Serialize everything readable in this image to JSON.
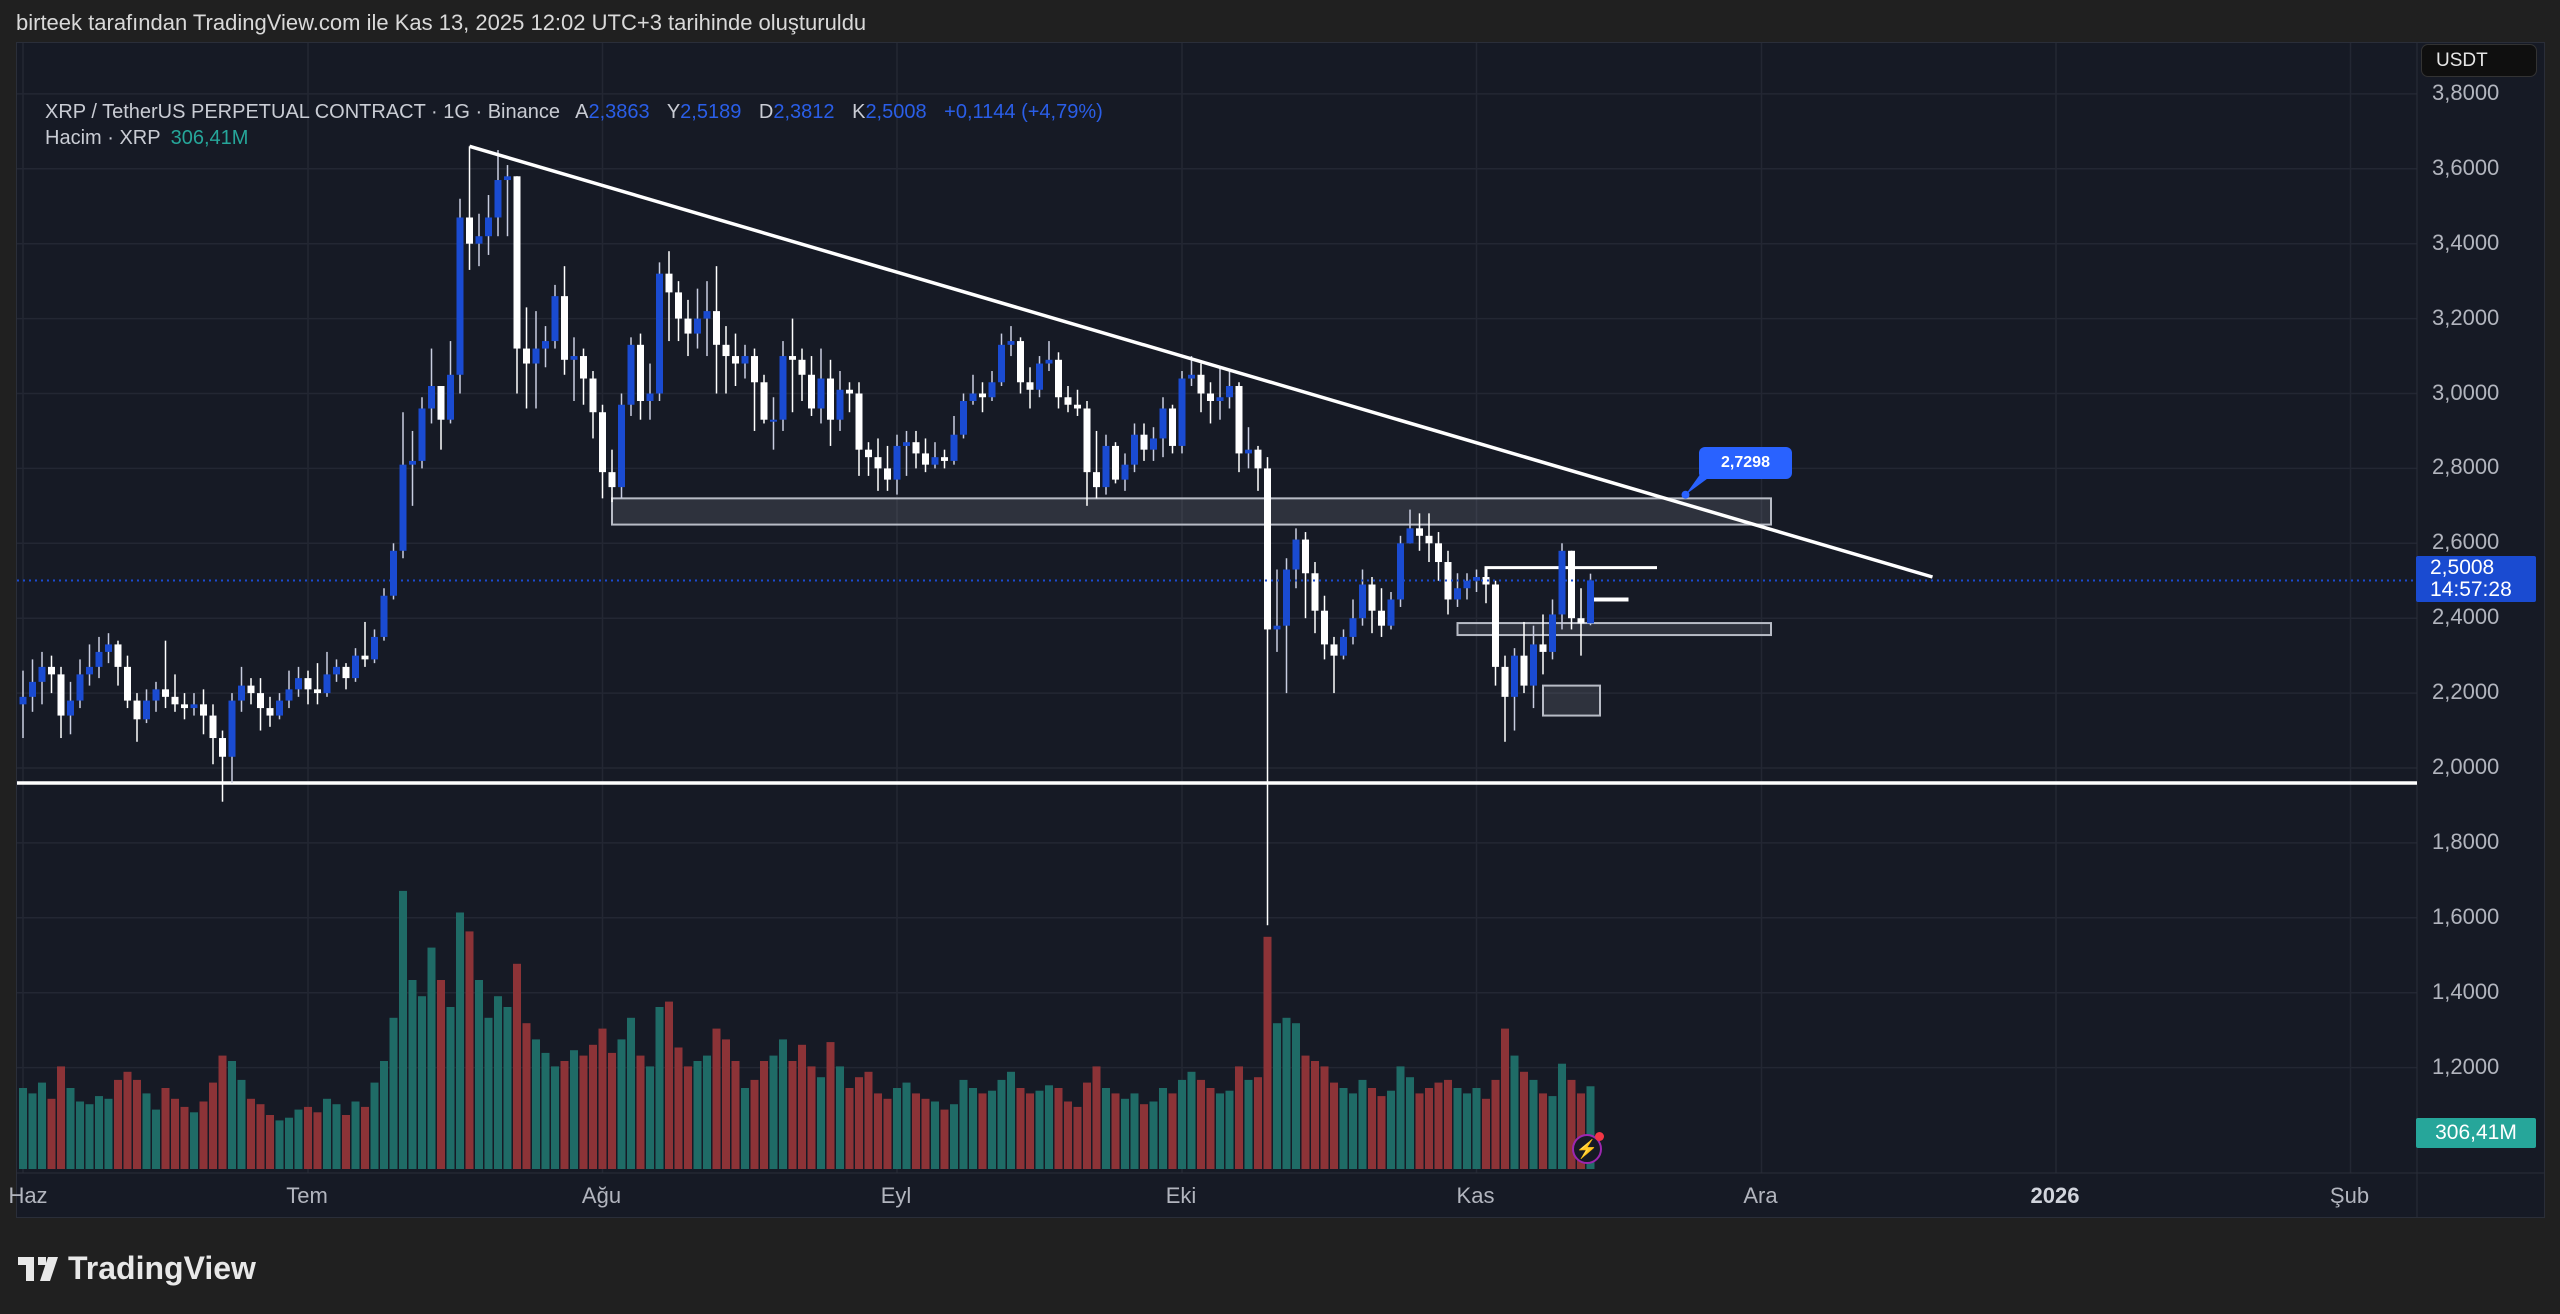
{
  "caption": "birteek tarafından TradingView.com ile Kas 13, 2025 12:02 UTC+3 tarihinde oluşturuldu",
  "legend": {
    "symbol": "XRP / TetherUS PERPETUAL CONTRACT · 1G · Binance",
    "open_label": "A",
    "open": "2,3863",
    "high_label": "Y",
    "high": "2,5189",
    "low_label": "D",
    "low": "2,3812",
    "close_label": "K",
    "close": "2,5008",
    "change": "+0,1144 (+4,79%)",
    "volume_label": "Hacim · XRP",
    "volume": "306,41M"
  },
  "currency_button": "USDT",
  "last_price": {
    "price": "2,5008",
    "countdown": "14:57:28"
  },
  "last_volume": "306,41M",
  "callout": "2,7298",
  "brand": "TradingView",
  "colors": {
    "background": "#161a25",
    "up_candle": "#1a4bd1",
    "down_candle": "#ffffff",
    "volume_up": "#1f6b66",
    "volume_down": "#8c3337",
    "drawing": "#ffffff",
    "callout": "#2962ff",
    "volume_tag": "#26a69a"
  },
  "icons": {
    "alert": "lightning-icon",
    "logo": "tradingview-logo-icon"
  },
  "chart_data": {
    "type": "candlestick",
    "start_date": "2025-06-01",
    "interval": "1D",
    "y_ticks": [
      "3,8000",
      "3,6000",
      "3,4000",
      "3,2000",
      "3,0000",
      "2,8000",
      "2,6000",
      "2,4000",
      "2,2000",
      "2,0000",
      "1,8000",
      "1,6000",
      "1,4000",
      "1,2000"
    ],
    "y_tick_values": [
      3.8,
      3.6,
      3.4,
      3.2,
      3.0,
      2.8,
      2.6,
      2.4,
      2.2,
      2.0,
      1.8,
      1.6,
      1.4,
      1.2
    ],
    "x_ticks": [
      {
        "label": "Haz",
        "date": "2025-06-01"
      },
      {
        "label": "Tem",
        "date": "2025-07-01"
      },
      {
        "label": "Ağu",
        "date": "2025-08-01"
      },
      {
        "label": "Eyl",
        "date": "2025-09-01"
      },
      {
        "label": "Eki",
        "date": "2025-10-01"
      },
      {
        "label": "Kas",
        "date": "2025-11-01"
      },
      {
        "label": "Ara",
        "date": "2025-12-01"
      },
      {
        "label": "2026",
        "date": "2026-01-01",
        "bold": true
      },
      {
        "label": "Şub",
        "date": "2026-02-01"
      }
    ],
    "first_open": 2.17,
    "close": [
      2.19,
      2.23,
      2.27,
      2.25,
      2.14,
      2.18,
      2.25,
      2.27,
      2.31,
      2.33,
      2.27,
      2.18,
      2.13,
      2.18,
      2.21,
      2.19,
      2.17,
      2.16,
      2.17,
      2.14,
      2.08,
      2.03,
      2.18,
      2.22,
      2.2,
      2.16,
      2.14,
      2.18,
      2.21,
      2.24,
      2.21,
      2.2,
      2.25,
      2.27,
      2.24,
      2.3,
      2.29,
      2.35,
      2.46,
      2.58,
      2.81,
      2.82,
      2.96,
      3.02,
      2.93,
      3.05,
      3.47,
      3.4,
      3.42,
      3.47,
      3.57,
      3.58,
      3.12,
      3.08,
      3.12,
      3.14,
      3.26,
      3.09,
      3.1,
      3.04,
      2.95,
      2.79,
      2.75,
      2.97,
      3.13,
      2.98,
      3.0,
      3.32,
      3.27,
      3.2,
      3.16,
      3.2,
      3.22,
      3.13,
      3.1,
      3.08,
      3.1,
      3.03,
      2.93,
      2.93,
      3.1,
      3.09,
      3.05,
      2.96,
      3.04,
      2.93,
      3.01,
      3.0,
      2.85,
      2.83,
      2.8,
      2.77,
      2.86,
      2.87,
      2.84,
      2.81,
      2.83,
      2.82,
      2.89,
      2.98,
      3.0,
      2.99,
      3.03,
      3.13,
      3.14,
      3.03,
      3.01,
      3.08,
      3.09,
      2.99,
      2.97,
      2.96,
      2.79,
      2.75,
      2.86,
      2.77,
      2.81,
      2.89,
      2.85,
      2.88,
      2.96,
      2.86,
      3.04,
      3.05,
      3.0,
      2.98,
      2.99,
      3.02,
      2.84,
      2.85,
      2.8,
      2.37,
      2.38,
      2.53,
      2.61,
      2.52,
      2.42,
      2.33,
      2.3,
      2.35,
      2.4,
      2.49,
      2.42,
      2.38,
      2.45,
      2.6,
      2.64,
      2.62,
      2.6,
      2.55,
      2.45,
      2.48,
      2.5,
      2.51,
      2.49,
      2.27,
      2.19,
      2.3,
      2.22,
      2.33,
      2.31,
      2.41,
      2.58,
      2.4,
      2.3863,
      2.5008
    ],
    "high": [
      2.26,
      2.29,
      2.31,
      2.3,
      2.27,
      2.23,
      2.29,
      2.33,
      2.35,
      2.36,
      2.34,
      2.3,
      2.2,
      2.21,
      2.23,
      2.34,
      2.25,
      2.2,
      2.2,
      2.21,
      2.17,
      2.1,
      2.2,
      2.27,
      2.24,
      2.24,
      2.19,
      2.2,
      2.26,
      2.27,
      2.26,
      2.28,
      2.31,
      2.29,
      2.28,
      2.32,
      2.39,
      2.37,
      2.48,
      2.6,
      2.95,
      2.9,
      2.99,
      3.12,
      3.02,
      3.14,
      3.52,
      3.66,
      3.48,
      3.53,
      3.65,
      3.61,
      3.58,
      3.23,
      3.22,
      3.18,
      3.29,
      3.34,
      3.15,
      3.12,
      3.06,
      2.97,
      2.85,
      3.0,
      3.15,
      3.16,
      3.08,
      3.35,
      3.38,
      3.3,
      3.25,
      3.28,
      3.3,
      3.34,
      3.18,
      3.16,
      3.13,
      3.12,
      3.05,
      2.99,
      3.14,
      3.2,
      3.12,
      3.1,
      3.12,
      3.09,
      3.06,
      3.03,
      3.03,
      2.87,
      2.88,
      2.86,
      2.89,
      2.9,
      2.9,
      2.88,
      2.87,
      2.85,
      2.94,
      3.0,
      3.05,
      3.03,
      3.06,
      3.16,
      3.18,
      3.15,
      3.07,
      3.1,
      3.14,
      3.11,
      3.02,
      3.01,
      2.98,
      2.9,
      2.89,
      2.87,
      2.84,
      2.92,
      2.92,
      2.91,
      2.99,
      2.97,
      3.06,
      3.1,
      3.08,
      3.03,
      3.07,
      3.06,
      3.03,
      2.91,
      2.86,
      2.83,
      2.53,
      2.56,
      2.64,
      2.63,
      2.55,
      2.46,
      2.35,
      2.37,
      2.45,
      2.53,
      2.51,
      2.48,
      2.47,
      2.62,
      2.69,
      2.68,
      2.68,
      2.63,
      2.58,
      2.52,
      2.52,
      2.53,
      2.52,
      2.5,
      2.3,
      2.32,
      2.39,
      2.38,
      2.41,
      2.45,
      2.6,
      2.58,
      2.48,
      2.5189
    ],
    "low": [
      2.08,
      2.15,
      2.17,
      2.2,
      2.08,
      2.09,
      2.16,
      2.22,
      2.24,
      2.28,
      2.22,
      2.16,
      2.07,
      2.12,
      2.15,
      2.16,
      2.15,
      2.13,
      2.14,
      2.09,
      2.01,
      1.91,
      1.96,
      2.15,
      2.17,
      2.1,
      2.11,
      2.13,
      2.16,
      2.19,
      2.17,
      2.17,
      2.19,
      2.23,
      2.21,
      2.23,
      2.27,
      2.28,
      2.34,
      2.45,
      2.56,
      2.7,
      2.8,
      2.92,
      2.85,
      2.92,
      3.0,
      3.33,
      3.34,
      3.37,
      3.42,
      3.42,
      3.0,
      2.96,
      2.96,
      3.07,
      3.12,
      3.05,
      2.98,
      2.97,
      2.88,
      2.72,
      2.71,
      2.72,
      2.94,
      2.93,
      2.93,
      2.98,
      3.14,
      3.14,
      3.1,
      3.12,
      3.1,
      3.0,
      3.0,
      3.02,
      3.04,
      2.9,
      2.92,
      2.85,
      2.9,
      2.95,
      2.98,
      2.94,
      2.92,
      2.86,
      2.9,
      2.95,
      2.78,
      2.78,
      2.74,
      2.74,
      2.73,
      2.78,
      2.8,
      2.79,
      2.8,
      2.8,
      2.81,
      2.88,
      2.97,
      2.95,
      2.98,
      3.02,
      3.1,
      3.0,
      2.96,
      2.99,
      3.06,
      2.96,
      2.95,
      2.94,
      2.7,
      2.72,
      2.73,
      2.76,
      2.74,
      2.79,
      2.82,
      2.82,
      2.83,
      2.84,
      2.84,
      3.02,
      2.95,
      2.92,
      2.93,
      2.96,
      2.79,
      2.8,
      2.74,
      1.58,
      2.31,
      2.2,
      2.48,
      2.4,
      2.36,
      2.29,
      2.2,
      2.29,
      2.33,
      2.38,
      2.36,
      2.35,
      2.37,
      2.43,
      2.6,
      2.58,
      2.55,
      2.5,
      2.41,
      2.43,
      2.45,
      2.47,
      2.44,
      2.22,
      2.07,
      2.1,
      2.2,
      2.16,
      2.25,
      2.29,
      2.37,
      2.37,
      2.3,
      2.3812
    ],
    "volume_millions": [
      300,
      280,
      320,
      260,
      380,
      300,
      250,
      240,
      270,
      260,
      330,
      360,
      330,
      280,
      220,
      300,
      260,
      230,
      210,
      250,
      320,
      420,
      400,
      330,
      260,
      240,
      200,
      180,
      190,
      220,
      230,
      210,
      260,
      240,
      200,
      250,
      230,
      320,
      400,
      560,
      1030,
      700,
      640,
      820,
      700,
      600,
      950,
      880,
      700,
      560,
      640,
      600,
      760,
      540,
      480,
      430,
      380,
      400,
      440,
      420,
      460,
      520,
      430,
      480,
      560,
      420,
      380,
      600,
      620,
      450,
      380,
      400,
      420,
      520,
      480,
      400,
      300,
      330,
      400,
      420,
      480,
      400,
      460,
      380,
      340,
      470,
      380,
      300,
      340,
      360,
      280,
      260,
      300,
      320,
      280,
      260,
      250,
      220,
      240,
      330,
      300,
      280,
      290,
      330,
      360,
      300,
      280,
      290,
      310,
      300,
      250,
      230,
      320,
      380,
      300,
      280,
      260,
      280,
      240,
      250,
      300,
      280,
      330,
      360,
      330,
      300,
      280,
      290,
      380,
      330,
      340,
      860,
      540,
      560,
      540,
      420,
      400,
      380,
      320,
      300,
      280,
      330,
      300,
      270,
      290,
      380,
      340,
      280,
      300,
      320,
      330,
      300,
      280,
      300,
      260,
      330,
      520,
      420,
      360,
      330,
      280,
      270,
      390,
      330,
      280,
      306.41
    ],
    "drawings": {
      "trendline": {
        "from": {
          "date": "2025-07-18",
          "price": 3.66
        },
        "to": {
          "date": "2025-12-19",
          "price": 2.51
        }
      },
      "support_line": {
        "price": 1.96
      },
      "zone_upper": {
        "from": "2025-08-02",
        "to": "2025-12-02",
        "top": 2.72,
        "bottom": 2.65
      },
      "zone_lower": {
        "from": "2025-10-30",
        "to": "2025-12-02",
        "top": 2.387,
        "bottom": 2.355
      },
      "box_small": {
        "from": "2025-11-08",
        "to": "2025-11-14",
        "top": 2.22,
        "bottom": 2.14
      },
      "range_high": {
        "from": "2025-11-02",
        "to": "2025-11-20",
        "price": 2.535
      },
      "mid_line": {
        "from": "2025-11-13",
        "to": "2025-11-17",
        "price": 2.45
      },
      "callout_point": {
        "date": "2025-11-23",
        "price": 2.7298
      }
    }
  }
}
